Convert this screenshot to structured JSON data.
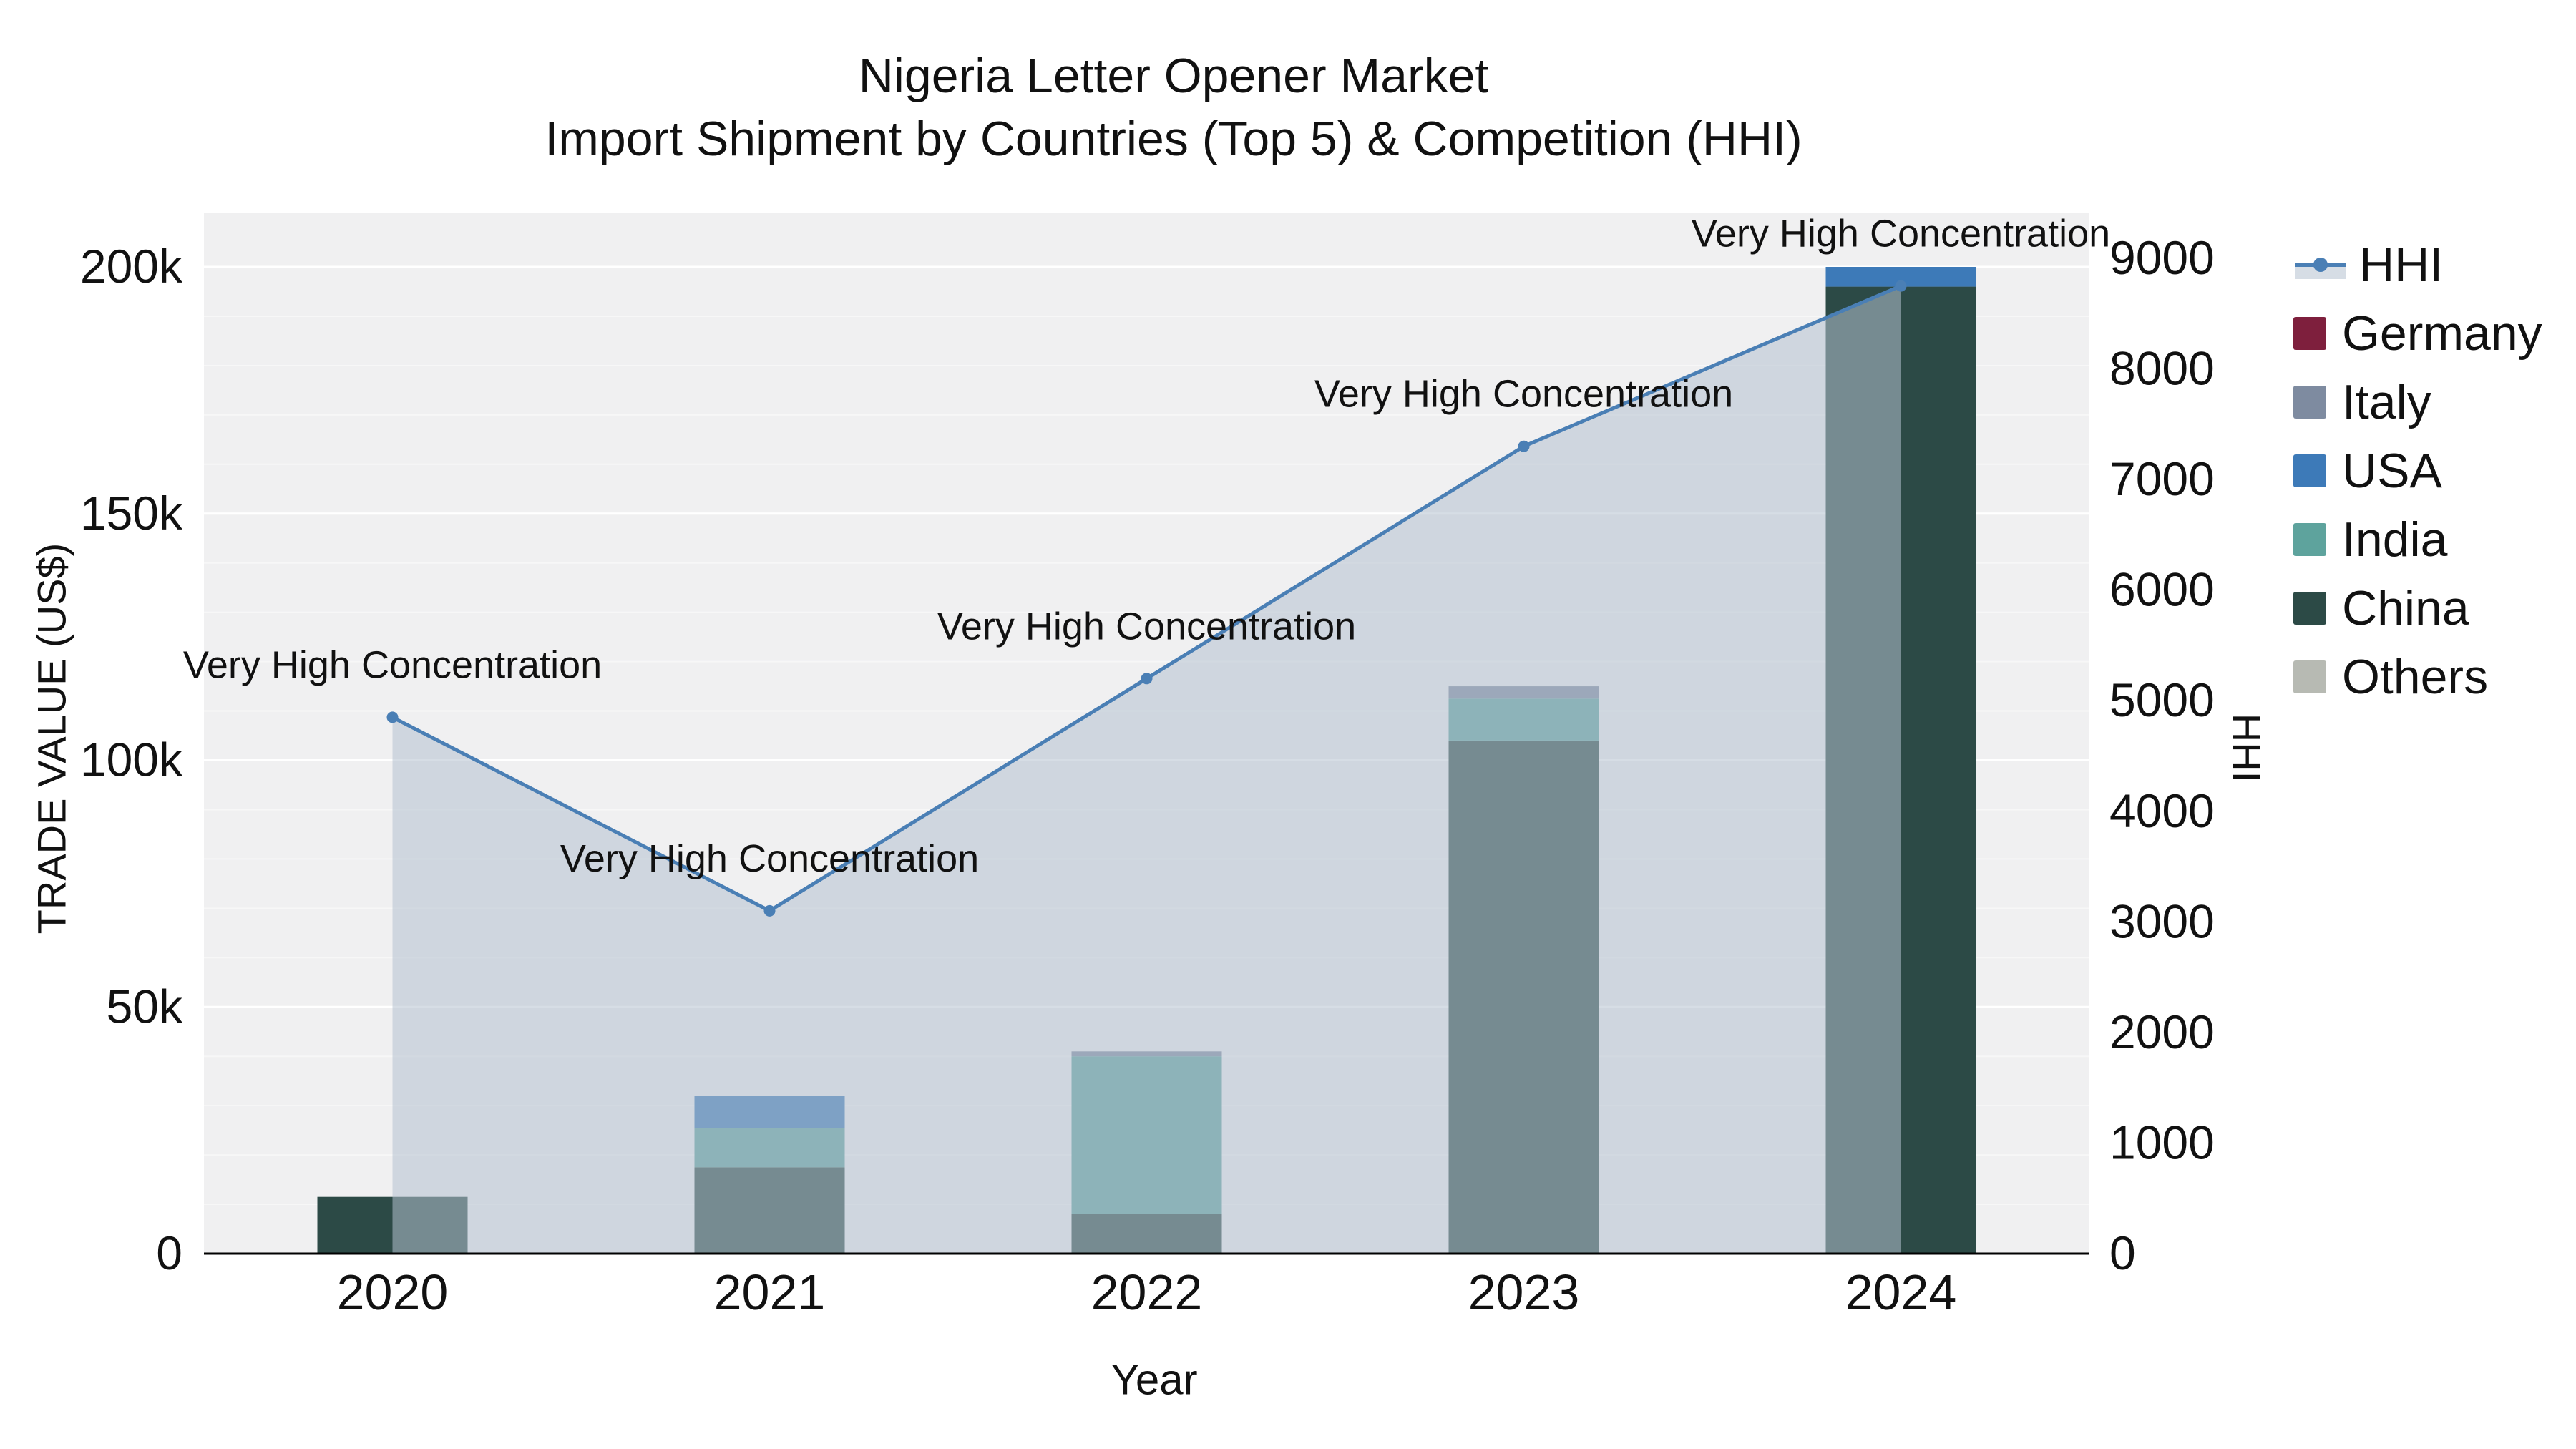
{
  "title": {
    "line1": "Nigeria Letter Opener Market",
    "line2": "Import Shipment by Countries (Top 5) & Competition (HHI)"
  },
  "axes": {
    "x_label": "Year",
    "y_left_label": "TRADE VALUE (US$)",
    "y_right_label": "HHI"
  },
  "legend": {
    "items": [
      {
        "label": "HHI",
        "type": "line",
        "color": "#4a7fb5"
      },
      {
        "label": "Germany",
        "type": "swatch",
        "color": "#7e1f3d"
      },
      {
        "label": "Italy",
        "type": "swatch",
        "color": "#7e8ba0"
      },
      {
        "label": "USA",
        "type": "swatch",
        "color": "#3d7ab8"
      },
      {
        "label": "India",
        "type": "swatch",
        "color": "#5ea39d"
      },
      {
        "label": "China",
        "type": "swatch",
        "color": "#2c4a46"
      },
      {
        "label": "Others",
        "type": "swatch",
        "color": "#b7bab3"
      }
    ]
  },
  "chart_data": {
    "type": "bar+line",
    "title": "Nigeria Letter Opener Market — Import Shipment by Countries (Top 5) & Competition (HHI)",
    "xlabel": "Year",
    "ylabel_left": "TRADE VALUE (US$)",
    "ylabel_right": "HHI",
    "categories": [
      "2020",
      "2021",
      "2022",
      "2023",
      "2024"
    ],
    "bar_series": [
      {
        "name": "China",
        "color": "#2c4a46",
        "values": [
          11500,
          17500,
          8000,
          104000,
          196000
        ]
      },
      {
        "name": "India",
        "color": "#5ea39d",
        "values": [
          0,
          8000,
          32000,
          8500,
          0
        ]
      },
      {
        "name": "USA",
        "color": "#3d7ab8",
        "values": [
          0,
          6500,
          0,
          0,
          4000
        ]
      },
      {
        "name": "Italy",
        "color": "#7e8ba0",
        "values": [
          0,
          0,
          1000,
          2500,
          0
        ]
      },
      {
        "name": "Germany",
        "color": "#7e1f3d",
        "values": [
          0,
          0,
          0,
          0,
          0
        ]
      },
      {
        "name": "Others",
        "color": "#b7bab3",
        "values": [
          0,
          0,
          0,
          0,
          0
        ]
      }
    ],
    "line_series": {
      "name": "HHI",
      "color": "#4a7fb5",
      "area_color": "rgba(180,193,208,0.55)",
      "values": [
        4850,
        3100,
        5200,
        7300,
        8750
      ],
      "annotations": [
        "Very High Concentration",
        "Very High Concentration",
        "Very High Concentration",
        "Very High Concentration",
        "Very High Concentration"
      ]
    },
    "left_axis": {
      "max": 200000,
      "minor_step": 10000,
      "ticks": [
        0,
        50000,
        100000,
        150000,
        200000
      ],
      "labels": [
        "0",
        "50k",
        "100k",
        "150k",
        "200k"
      ]
    },
    "right_axis": {
      "max": 9000,
      "ticks": [
        0,
        1000,
        2000,
        3000,
        4000,
        5000,
        6000,
        7000,
        8000,
        9000
      ],
      "labels": [
        "0",
        "1000",
        "2000",
        "3000",
        "4000",
        "5000",
        "6000",
        "7000",
        "8000",
        "9000"
      ]
    },
    "plot_bg": "#f0f0f1",
    "grid_color": "#ffffff",
    "legend_position": "right"
  }
}
